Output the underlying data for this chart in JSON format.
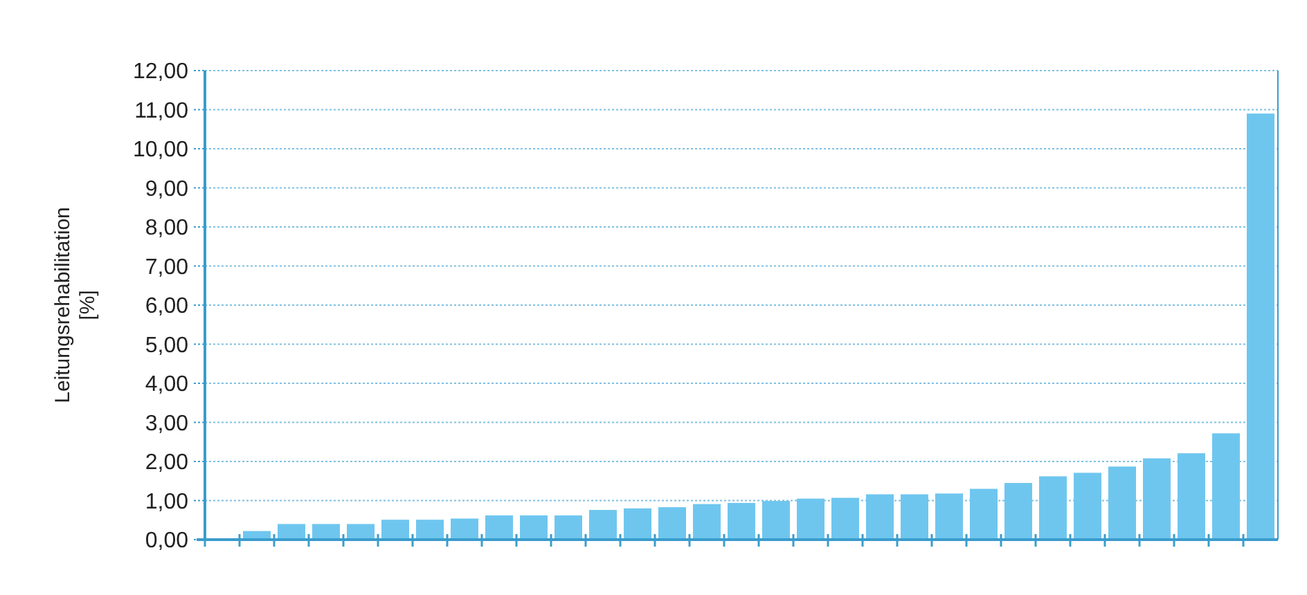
{
  "chart_data": {
    "type": "bar",
    "ylabel": "Leitungsrehabilitation\n[%]",
    "categories": [
      null,
      null,
      null,
      null,
      null,
      null,
      null,
      null,
      null,
      null,
      null,
      null,
      null,
      null,
      null,
      null,
      null,
      null,
      null,
      null,
      null,
      null,
      null,
      null,
      null,
      null,
      null,
      null,
      null,
      null,
      null
    ],
    "values": [
      0,
      0.22,
      0.4,
      0.4,
      0.4,
      0.51,
      0.51,
      0.54,
      0.62,
      0.62,
      0.62,
      0.76,
      0.8,
      0.83,
      0.91,
      0.94,
      0.99,
      1.05,
      1.07,
      1.16,
      1.16,
      1.18,
      1.3,
      1.45,
      1.62,
      1.71,
      1.87,
      2.08,
      2.21,
      2.72,
      10.9
    ],
    "color": "#6ec6ef",
    "ylim": [
      0,
      12
    ],
    "yticks": [
      {
        "value": 0,
        "label": "0,00"
      },
      {
        "value": 1,
        "label": "1,00"
      },
      {
        "value": 2,
        "label": "2,00"
      },
      {
        "value": 3,
        "label": "3,00"
      },
      {
        "value": 4,
        "label": "4,00"
      },
      {
        "value": 5,
        "label": "5,00"
      },
      {
        "value": 6,
        "label": "6,00"
      },
      {
        "value": 7,
        "label": "7,00"
      },
      {
        "value": 8,
        "label": "8,00"
      },
      {
        "value": 9,
        "label": "9,00"
      },
      {
        "value": 10,
        "label": "10,00"
      },
      {
        "value": 11,
        "label": "11,00"
      },
      {
        "value": 12,
        "label": "12,00"
      }
    ],
    "grid": "y"
  }
}
